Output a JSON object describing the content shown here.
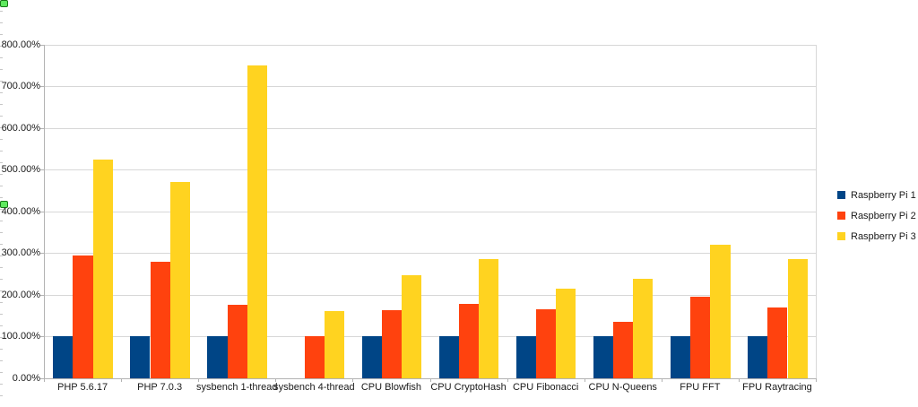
{
  "chart_data": {
    "type": "bar",
    "title": "",
    "categories": [
      "PHP 5.6.17",
      "PHP 7.0.3",
      "sysbench 1-thread",
      "sysbench 4-thread",
      "CPU Blowfish",
      "CPU CryptoHash",
      "CPU Fibonacci",
      "CPU N-Queens",
      "FPU FFT",
      "FPU Raytracing"
    ],
    "series": [
      {
        "name": "Raspberry Pi 1",
        "color": "#004586",
        "values": [
          100,
          100,
          100,
          0,
          100,
          100,
          100,
          100,
          100,
          100
        ]
      },
      {
        "name": "Raspberry Pi 2",
        "color": "#FF420E",
        "values": [
          295,
          280,
          175,
          100,
          163,
          177,
          165,
          135,
          195,
          170
        ]
      },
      {
        "name": "Raspberry Pi 3",
        "color": "#FFD320",
        "values": [
          525,
          470,
          750,
          160,
          247,
          285,
          215,
          238,
          320,
          285
        ]
      }
    ],
    "y_axis": {
      "min": 0,
      "max": 800,
      "step": 100,
      "tick_labels": [
        "0.00%",
        "100.00%",
        "200.00%",
        "300.00%",
        "400.00%",
        "500.00%",
        "600.00%",
        "700.00%",
        "800.00%"
      ],
      "format": "percent"
    },
    "xlabel": "",
    "ylabel": "",
    "legend_position": "right",
    "grid": true
  },
  "legend": {
    "items": [
      {
        "label": "Raspberry Pi 1",
        "color": "#004586"
      },
      {
        "label": "Raspberry Pi 2",
        "color": "#FF420E"
      },
      {
        "label": "Raspberry Pi 3",
        "color": "#FFD320"
      }
    ]
  },
  "colors": {
    "background": "#ffffff",
    "gridline": "#d7d7d7",
    "axis": "#b3b3b3",
    "text": "#1a1a1a",
    "selection_handle_fill": "#5fe95f",
    "selection_handle_border": "#177917"
  }
}
